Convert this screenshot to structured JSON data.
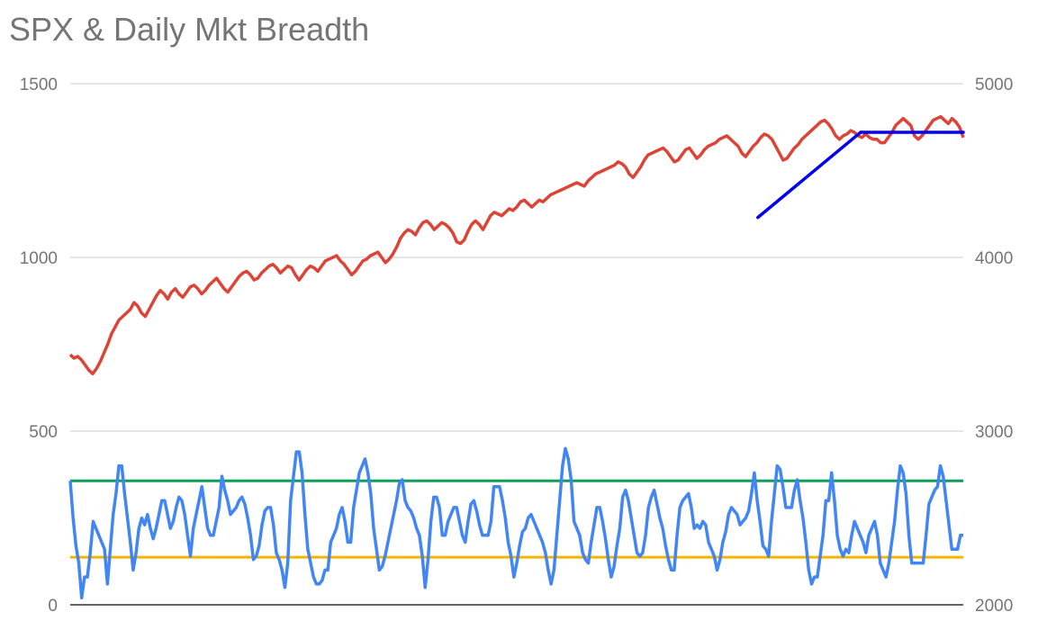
{
  "chart_data": {
    "type": "line",
    "title": "SPX & Daily Mkt Breadth",
    "left_axis": {
      "ticks": [
        "0",
        "500",
        "1000",
        "1500"
      ],
      "range": [
        0,
        1500
      ]
    },
    "right_axis": {
      "ticks": [
        "2000",
        "3000",
        "4000",
        "5000"
      ],
      "range": [
        2000,
        5000
      ]
    },
    "grid": true,
    "series": [
      {
        "axis": "right",
        "color": "#db4437",
        "values": [
          3440,
          3420,
          3430,
          3410,
          3380,
          3350,
          3330,
          3360,
          3400,
          3450,
          3500,
          3560,
          3600,
          3640,
          3660,
          3680,
          3700,
          3740,
          3720,
          3680,
          3660,
          3700,
          3740,
          3780,
          3810,
          3790,
          3760,
          3800,
          3820,
          3790,
          3770,
          3800,
          3830,
          3840,
          3820,
          3790,
          3810,
          3840,
          3860,
          3880,
          3850,
          3820,
          3800,
          3830,
          3860,
          3890,
          3910,
          3920,
          3900,
          3870,
          3880,
          3910,
          3930,
          3950,
          3960,
          3940,
          3910,
          3930,
          3950,
          3940,
          3900,
          3870,
          3900,
          3930,
          3950,
          3940,
          3920,
          3950,
          3980,
          3990,
          4000,
          4010,
          3980,
          3960,
          3930,
          3900,
          3920,
          3950,
          3980,
          3990,
          4010,
          4020,
          4030,
          4000,
          3970,
          3990,
          4020,
          4060,
          4110,
          4140,
          4160,
          4150,
          4130,
          4170,
          4200,
          4210,
          4190,
          4160,
          4180,
          4200,
          4190,
          4170,
          4140,
          4090,
          4080,
          4100,
          4150,
          4190,
          4210,
          4190,
          4160,
          4200,
          4240,
          4260,
          4250,
          4240,
          4260,
          4280,
          4270,
          4290,
          4320,
          4330,
          4310,
          4290,
          4310,
          4330,
          4320,
          4340,
          4360,
          4370,
          4380,
          4390,
          4400,
          4410,
          4420,
          4430,
          4420,
          4410,
          4440,
          4460,
          4480,
          4490,
          4500,
          4510,
          4520,
          4530,
          4550,
          4540,
          4520,
          4480,
          4460,
          4490,
          4520,
          4560,
          4590,
          4600,
          4610,
          4620,
          4630,
          4610,
          4580,
          4550,
          4560,
          4590,
          4620,
          4630,
          4600,
          4570,
          4590,
          4620,
          4640,
          4650,
          4660,
          4680,
          4690,
          4700,
          4680,
          4660,
          4640,
          4600,
          4580,
          4610,
          4640,
          4660,
          4690,
          4710,
          4700,
          4680,
          4640,
          4600,
          4560,
          4570,
          4600,
          4630,
          4650,
          4680,
          4700,
          4720,
          4740,
          4760,
          4780,
          4790,
          4770,
          4740,
          4700,
          4680,
          4700,
          4710,
          4730,
          4720,
          4700,
          4690,
          4710,
          4690,
          4680,
          4680,
          4660,
          4660,
          4690,
          4720,
          4760,
          4780,
          4800,
          4780,
          4760,
          4700,
          4680,
          4700,
          4730,
          4760,
          4790,
          4800,
          4810,
          4790,
          4770,
          4800,
          4780,
          4750,
          4690
        ]
      },
      {
        "axis": "left",
        "color": "#4285f4",
        "values": [
          357,
          250,
          170,
          120,
          20,
          80,
          80,
          150,
          240,
          220,
          200,
          180,
          160,
          60,
          160,
          260,
          320,
          400,
          400,
          320,
          250,
          180,
          100,
          150,
          220,
          250,
          230,
          260,
          220,
          190,
          220,
          260,
          300,
          300,
          260,
          220,
          240,
          280,
          310,
          300,
          260,
          200,
          140,
          220,
          260,
          300,
          340,
          280,
          220,
          200,
          200,
          240,
          280,
          370,
          330,
          300,
          260,
          270,
          280,
          300,
          310,
          290,
          250,
          200,
          130,
          140,
          170,
          230,
          270,
          280,
          280,
          230,
          150,
          130,
          100,
          50,
          120,
          300,
          370,
          440,
          440,
          380,
          260,
          160,
          120,
          80,
          60,
          60,
          70,
          100,
          100,
          180,
          200,
          220,
          260,
          280,
          240,
          180,
          180,
          280,
          330,
          380,
          400,
          420,
          380,
          320,
          220,
          160,
          100,
          110,
          140,
          180,
          220,
          260,
          300,
          350,
          360,
          300,
          280,
          270,
          250,
          220,
          200,
          140,
          50,
          130,
          240,
          310,
          310,
          280,
          200,
          200,
          240,
          260,
          280,
          280,
          240,
          200,
          180,
          240,
          290,
          300,
          270,
          230,
          200,
          200,
          200,
          240,
          340,
          340,
          340,
          300,
          250,
          180,
          140,
          80,
          120,
          170,
          210,
          220,
          250,
          260,
          240,
          220,
          200,
          180,
          150,
          100,
          60,
          100,
          200,
          300,
          400,
          450,
          420,
          360,
          240,
          220,
          200,
          150,
          130,
          120,
          180,
          230,
          280,
          280,
          240,
          190,
          130,
          80,
          110,
          170,
          220,
          310,
          330,
          300,
          250,
          200,
          150,
          140,
          150,
          200,
          280,
          310,
          330,
          290,
          250,
          220,
          170,
          130,
          100,
          100,
          200,
          280,
          300,
          310,
          320,
          280,
          220,
          230,
          220,
          240,
          230,
          180,
          160,
          140,
          100,
          130,
          180,
          210,
          260,
          280,
          270,
          260,
          230,
          240,
          250,
          270,
          320,
          380,
          300,
          240,
          170,
          160,
          140,
          240,
          320,
          400,
          390,
          340,
          280,
          280,
          280,
          330,
          360,
          300,
          250,
          180,
          100,
          60,
          80,
          80,
          140,
          200,
          300,
          300,
          380,
          300,
          200,
          160,
          140,
          160,
          150,
          200,
          240,
          220,
          200,
          180,
          150,
          200,
          220,
          240,
          200,
          120,
          100,
          80,
          120,
          180,
          240,
          330,
          400,
          380,
          320,
          200,
          120,
          120,
          120,
          120,
          120,
          200,
          290,
          310,
          330,
          340,
          400,
          370,
          300,
          230,
          160,
          160,
          160,
          200,
          200
        ]
      }
    ],
    "reference_lines": [
      {
        "axis": "left",
        "value": 357,
        "color": "#0f9d58"
      },
      {
        "axis": "left",
        "value": 137,
        "color": "#f4b400"
      }
    ],
    "trend_lines": [
      {
        "axis": "right",
        "color": "#0000ee",
        "points": [
          [
            0.77,
            4230
          ],
          [
            0.885,
            4720
          ]
        ]
      },
      {
        "axis": "right",
        "color": "#0000ee",
        "points": [
          [
            0.885,
            4720
          ],
          [
            1.0,
            4720
          ]
        ]
      }
    ]
  }
}
